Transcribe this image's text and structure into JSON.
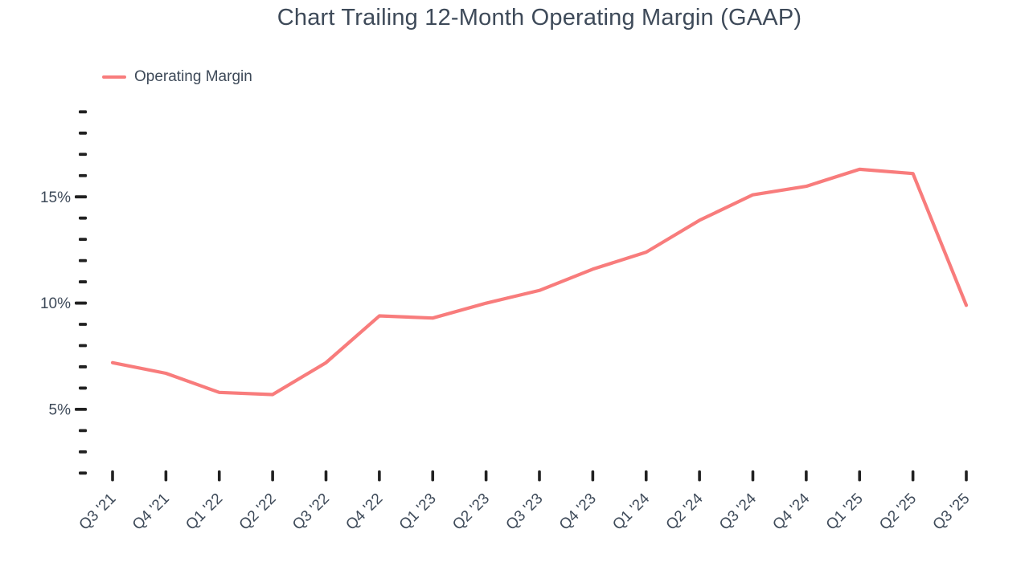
{
  "page": {
    "background": "#ffffff"
  },
  "chart_data": {
    "type": "line",
    "title": "Chart Trailing 12-Month Operating Margin (GAAP)",
    "legend": [
      {
        "label": "Operating Margin",
        "color": "#F87C7C"
      }
    ],
    "legend_position": "top-left",
    "categories": [
      "Q3 '21",
      "Q4 '21",
      "Q1 '22",
      "Q2 '22",
      "Q3 '22",
      "Q4 '22",
      "Q1 '23",
      "Q2 '23",
      "Q3 '23",
      "Q4 '23",
      "Q1 '24",
      "Q2 '24",
      "Q3 '24",
      "Q4 '24",
      "Q1 '25",
      "Q2 '25",
      "Q3 '25"
    ],
    "series": [
      {
        "name": "Operating Margin",
        "values": [
          7.2,
          6.7,
          5.8,
          5.7,
          7.2,
          9.4,
          9.3,
          10.0,
          10.6,
          11.6,
          12.4,
          13.9,
          15.1,
          15.5,
          16.3,
          16.1,
          9.9
        ]
      }
    ],
    "ylabel": "",
    "xlabel": "",
    "ylim": [
      2,
      19
    ],
    "ytick_step": 1,
    "ytick_labels": [
      {
        "value": 5,
        "label": "5%"
      },
      {
        "value": 10,
        "label": "10%"
      },
      {
        "value": 15,
        "label": "15%"
      }
    ],
    "x_label_rotation": -45,
    "grid": false,
    "colors": {
      "line": "#F87C7C",
      "text": "#3E4A59",
      "tick": "#212121"
    }
  }
}
